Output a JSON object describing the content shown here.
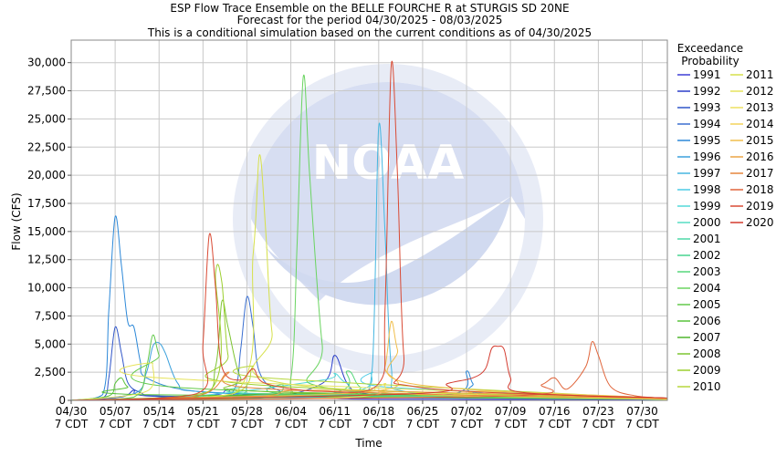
{
  "chart_data": {
    "type": "line",
    "title_lines": [
      "ESP Flow Trace Ensemble on the BELLE FOURCHE R at STURGIS SD 20NE",
      "Forecast for the period 04/30/2025 - 08/03/2025",
      "This is a conditional simulation based on the current conditions as of 04/30/2025"
    ],
    "xlabel": "Time",
    "ylabel": "Flow (CFS)",
    "xlim_days": [
      0,
      95
    ],
    "ylim": [
      0,
      32000
    ],
    "grid": true,
    "x_ticks": [
      {
        "day": 0,
        "label_top": "04/30",
        "label_bottom": "7 CDT"
      },
      {
        "day": 7,
        "label_top": "05/07",
        "label_bottom": "7 CDT"
      },
      {
        "day": 14,
        "label_top": "05/14",
        "label_bottom": "7 CDT"
      },
      {
        "day": 21,
        "label_top": "05/21",
        "label_bottom": "7 CDT"
      },
      {
        "day": 28,
        "label_top": "05/28",
        "label_bottom": "7 CDT"
      },
      {
        "day": 35,
        "label_top": "06/04",
        "label_bottom": "7 CDT"
      },
      {
        "day": 42,
        "label_top": "06/11",
        "label_bottom": "7 CDT"
      },
      {
        "day": 49,
        "label_top": "06/18",
        "label_bottom": "7 CDT"
      },
      {
        "day": 56,
        "label_top": "06/25",
        "label_bottom": "7 CDT"
      },
      {
        "day": 63,
        "label_top": "07/02",
        "label_bottom": "7 CDT"
      },
      {
        "day": 70,
        "label_top": "07/09",
        "label_bottom": "7 CDT"
      },
      {
        "day": 77,
        "label_top": "07/16",
        "label_bottom": "7 CDT"
      },
      {
        "day": 84,
        "label_top": "07/23",
        "label_bottom": "7 CDT"
      },
      {
        "day": 91,
        "label_top": "07/30",
        "label_bottom": "7 CDT"
      }
    ],
    "y_ticks": [
      {
        "value": 0,
        "label": "0"
      },
      {
        "value": 2500,
        "label": "2,500"
      },
      {
        "value": 5000,
        "label": "5,000"
      },
      {
        "value": 7500,
        "label": "7,500"
      },
      {
        "value": 10000,
        "label": "10,000"
      },
      {
        "value": 12500,
        "label": "12,500"
      },
      {
        "value": 15000,
        "label": "15,000"
      },
      {
        "value": 17500,
        "label": "17,500"
      },
      {
        "value": 20000,
        "label": "20,000"
      },
      {
        "value": 22500,
        "label": "22,500"
      },
      {
        "value": 25000,
        "label": "25,000"
      },
      {
        "value": 27500,
        "label": "27,500"
      },
      {
        "value": 30000,
        "label": "30,000"
      }
    ],
    "legend_title_lines": [
      "Exceedance",
      "Probability"
    ],
    "legend_placement": "right",
    "watermark": "NOAA - NATIONAL OCEANIC AND ATMOSPHERIC ADMINISTRATION - U.S. DEPARTMENT OF COMMERCE",
    "series": [
      {
        "name": "1991",
        "color": "#3d3dd6",
        "points": [
          [
            0,
            0
          ],
          [
            20,
            150
          ],
          [
            22,
            400
          ],
          [
            24,
            600
          ],
          [
            25,
            1000
          ],
          [
            27,
            400
          ],
          [
            40,
            200
          ],
          [
            50,
            100
          ],
          [
            95,
            50
          ]
        ]
      },
      {
        "name": "1992",
        "color": "#2a3ec9",
        "points": [
          [
            0,
            0
          ],
          [
            8,
            300
          ],
          [
            10,
            900
          ],
          [
            12,
            400
          ],
          [
            30,
            200
          ],
          [
            40,
            1500
          ],
          [
            42,
            4000
          ],
          [
            44,
            1500
          ],
          [
            47,
            600
          ],
          [
            60,
            300
          ],
          [
            95,
            100
          ]
        ]
      },
      {
        "name": "1993",
        "color": "#2f55c8",
        "points": [
          [
            0,
            0
          ],
          [
            5,
            200
          ],
          [
            6,
            2000
          ],
          [
            7,
            6500
          ],
          [
            8,
            4200
          ],
          [
            9,
            1600
          ],
          [
            11,
            700
          ],
          [
            14,
            400
          ],
          [
            30,
            300
          ],
          [
            60,
            200
          ],
          [
            95,
            100
          ]
        ]
      },
      {
        "name": "1994",
        "color": "#3a6fd0",
        "points": [
          [
            0,
            0
          ],
          [
            22,
            300
          ],
          [
            26,
            1000
          ],
          [
            27,
            4500
          ],
          [
            28,
            9200
          ],
          [
            29,
            6500
          ],
          [
            30,
            2500
          ],
          [
            33,
            900
          ],
          [
            40,
            400
          ],
          [
            95,
            100
          ]
        ]
      },
      {
        "name": "1995",
        "color": "#2c88d8",
        "points": [
          [
            0,
            0
          ],
          [
            5,
            500
          ],
          [
            6,
            8000
          ],
          [
            7,
            16300
          ],
          [
            8,
            12000
          ],
          [
            9,
            7000
          ],
          [
            10,
            6500
          ],
          [
            11,
            3500
          ],
          [
            12,
            2000
          ],
          [
            20,
            800
          ],
          [
            40,
            400
          ],
          [
            61,
            600
          ],
          [
            63,
            2600
          ],
          [
            64,
            1500
          ],
          [
            66,
            600
          ],
          [
            95,
            100
          ]
        ]
      },
      {
        "name": "1996",
        "color": "#3aa0dc",
        "points": [
          [
            0,
            0
          ],
          [
            10,
            600
          ],
          [
            12,
            2500
          ],
          [
            13,
            4800
          ],
          [
            14,
            5100
          ],
          [
            15,
            4200
          ],
          [
            17,
            1500
          ],
          [
            20,
            800
          ],
          [
            40,
            500
          ],
          [
            95,
            200
          ]
        ]
      },
      {
        "name": "1997",
        "color": "#45b6e0",
        "points": [
          [
            0,
            0
          ],
          [
            40,
            300
          ],
          [
            46,
            600
          ],
          [
            48,
            3000
          ],
          [
            49,
            24300
          ],
          [
            50,
            15000
          ],
          [
            51,
            3000
          ],
          [
            53,
            800
          ],
          [
            70,
            300
          ],
          [
            95,
            100
          ]
        ]
      },
      {
        "name": "1998",
        "color": "#4ccbe5",
        "points": [
          [
            0,
            0
          ],
          [
            20,
            300
          ],
          [
            45,
            800
          ],
          [
            48,
            2500
          ],
          [
            50,
            1200
          ],
          [
            95,
            200
          ]
        ]
      },
      {
        "name": "1999",
        "color": "#53d8d8",
        "points": [
          [
            0,
            0
          ],
          [
            20,
            400
          ],
          [
            40,
            1800
          ],
          [
            42,
            2400
          ],
          [
            44,
            1500
          ],
          [
            50,
            600
          ],
          [
            95,
            100
          ]
        ]
      },
      {
        "name": "2000",
        "color": "#55dcc2",
        "points": [
          [
            0,
            0
          ],
          [
            15,
            200
          ],
          [
            30,
            500
          ],
          [
            48,
            400
          ],
          [
            95,
            100
          ]
        ]
      },
      {
        "name": "2001",
        "color": "#4ed9a8",
        "points": [
          [
            0,
            0
          ],
          [
            25,
            400
          ],
          [
            28,
            1200
          ],
          [
            30,
            600
          ],
          [
            95,
            100
          ]
        ]
      },
      {
        "name": "2002",
        "color": "#47d48f",
        "points": [
          [
            0,
            0
          ],
          [
            30,
            300
          ],
          [
            34,
            1500
          ],
          [
            36,
            500
          ],
          [
            95,
            100
          ]
        ]
      },
      {
        "name": "2003",
        "color": "#55d77a",
        "points": [
          [
            0,
            0
          ],
          [
            40,
            500
          ],
          [
            44,
            2600
          ],
          [
            46,
            1200
          ],
          [
            50,
            400
          ],
          [
            95,
            100
          ]
        ]
      },
      {
        "name": "2004",
        "color": "#6ad461",
        "points": [
          [
            0,
            0
          ],
          [
            32,
            400
          ],
          [
            35,
            2000
          ],
          [
            36,
            14000
          ],
          [
            37,
            28800
          ],
          [
            38,
            20000
          ],
          [
            40,
            5000
          ],
          [
            42,
            1000
          ],
          [
            95,
            100
          ]
        ]
      },
      {
        "name": "2005",
        "color": "#62c94a",
        "points": [
          [
            0,
            0
          ],
          [
            10,
            300
          ],
          [
            12,
            3000
          ],
          [
            13,
            5800
          ],
          [
            14,
            4000
          ],
          [
            16,
            1200
          ],
          [
            95,
            100
          ]
        ]
      },
      {
        "name": "2006",
        "color": "#59c23a",
        "points": [
          [
            0,
            0
          ],
          [
            6,
            400
          ],
          [
            7,
            1500
          ],
          [
            8,
            2000
          ],
          [
            9,
            1200
          ],
          [
            12,
            500
          ],
          [
            95,
            100
          ]
        ]
      },
      {
        "name": "2007",
        "color": "#4fb52e",
        "points": [
          [
            0,
            0
          ],
          [
            20,
            300
          ],
          [
            40,
            600
          ],
          [
            95,
            150
          ]
        ]
      },
      {
        "name": "2008",
        "color": "#7cc430",
        "points": [
          [
            0,
            0
          ],
          [
            20,
            400
          ],
          [
            23,
            3000
          ],
          [
            24,
            8800
          ],
          [
            25,
            6500
          ],
          [
            27,
            2000
          ],
          [
            30,
            800
          ],
          [
            95,
            100
          ]
        ]
      },
      {
        "name": "2009",
        "color": "#9ccf2f",
        "points": [
          [
            0,
            0
          ],
          [
            22,
            800
          ],
          [
            23,
            11300
          ],
          [
            24,
            10500
          ],
          [
            25,
            4000
          ],
          [
            27,
            1500
          ],
          [
            95,
            100
          ]
        ]
      },
      {
        "name": "2010",
        "color": "#b7d73c",
        "points": [
          [
            0,
            0
          ],
          [
            25,
            500
          ],
          [
            29,
            3000
          ],
          [
            31,
            2000
          ],
          [
            95,
            150
          ]
        ]
      },
      {
        "name": "2011",
        "color": "#d6e04a",
        "points": [
          [
            0,
            0
          ],
          [
            26,
            600
          ],
          [
            29,
            13000
          ],
          [
            30,
            21800
          ],
          [
            31,
            15000
          ],
          [
            32,
            6000
          ],
          [
            34,
            1500
          ],
          [
            95,
            100
          ]
        ]
      },
      {
        "name": "2012",
        "color": "#e6e35c",
        "points": [
          [
            0,
            0
          ],
          [
            12,
            800
          ],
          [
            13,
            3300
          ],
          [
            14,
            2000
          ],
          [
            95,
            100
          ]
        ]
      },
      {
        "name": "2013",
        "color": "#ede060",
        "points": [
          [
            0,
            0
          ],
          [
            45,
            300
          ],
          [
            50,
            1500
          ],
          [
            52,
            600
          ],
          [
            95,
            100
          ]
        ]
      },
      {
        "name": "2014",
        "color": "#f2d35a",
        "points": [
          [
            0,
            0
          ],
          [
            60,
            300
          ],
          [
            65,
            800
          ],
          [
            95,
            200
          ]
        ]
      },
      {
        "name": "2015",
        "color": "#f0be4c",
        "points": [
          [
            0,
            0
          ],
          [
            48,
            800
          ],
          [
            50,
            3000
          ],
          [
            51,
            7000
          ],
          [
            52,
            4500
          ],
          [
            54,
            1500
          ],
          [
            95,
            100
          ]
        ]
      },
      {
        "name": "2016",
        "color": "#eaa444",
        "points": [
          [
            0,
            0
          ],
          [
            30,
            400
          ],
          [
            40,
            900
          ],
          [
            95,
            200
          ]
        ]
      },
      {
        "name": "2017",
        "color": "#e6853c",
        "points": [
          [
            0,
            0
          ],
          [
            20,
            400
          ],
          [
            25,
            2500
          ],
          [
            27,
            1200
          ],
          [
            60,
            500
          ],
          [
            95,
            200
          ]
        ]
      },
      {
        "name": "2018",
        "color": "#e0643a",
        "points": [
          [
            0,
            0
          ],
          [
            70,
            400
          ],
          [
            75,
            1400
          ],
          [
            77,
            2000
          ],
          [
            79,
            1000
          ],
          [
            82,
            3000
          ],
          [
            83,
            5200
          ],
          [
            84,
            4000
          ],
          [
            86,
            1200
          ],
          [
            90,
            400
          ],
          [
            95,
            200
          ]
        ]
      },
      {
        "name": "2019",
        "color": "#d94a34",
        "points": [
          [
            0,
            0
          ],
          [
            20,
            600
          ],
          [
            21,
            5000
          ],
          [
            22,
            14700
          ],
          [
            23,
            10000
          ],
          [
            24,
            3000
          ],
          [
            27,
            1800
          ],
          [
            29,
            2800
          ],
          [
            31,
            1500
          ],
          [
            40,
            800
          ],
          [
            49,
            1500
          ],
          [
            50,
            8000
          ],
          [
            51,
            29800
          ],
          [
            52,
            20000
          ],
          [
            53,
            4000
          ],
          [
            55,
            1200
          ],
          [
            95,
            200
          ]
        ]
      },
      {
        "name": "2020",
        "color": "#d33a2e",
        "points": [
          [
            0,
            0
          ],
          [
            55,
            600
          ],
          [
            60,
            1500
          ],
          [
            64,
            2000
          ],
          [
            66,
            2800
          ],
          [
            67,
            4600
          ],
          [
            68,
            4800
          ],
          [
            69,
            4500
          ],
          [
            70,
            2000
          ],
          [
            72,
            700
          ],
          [
            95,
            200
          ]
        ]
      }
    ]
  }
}
